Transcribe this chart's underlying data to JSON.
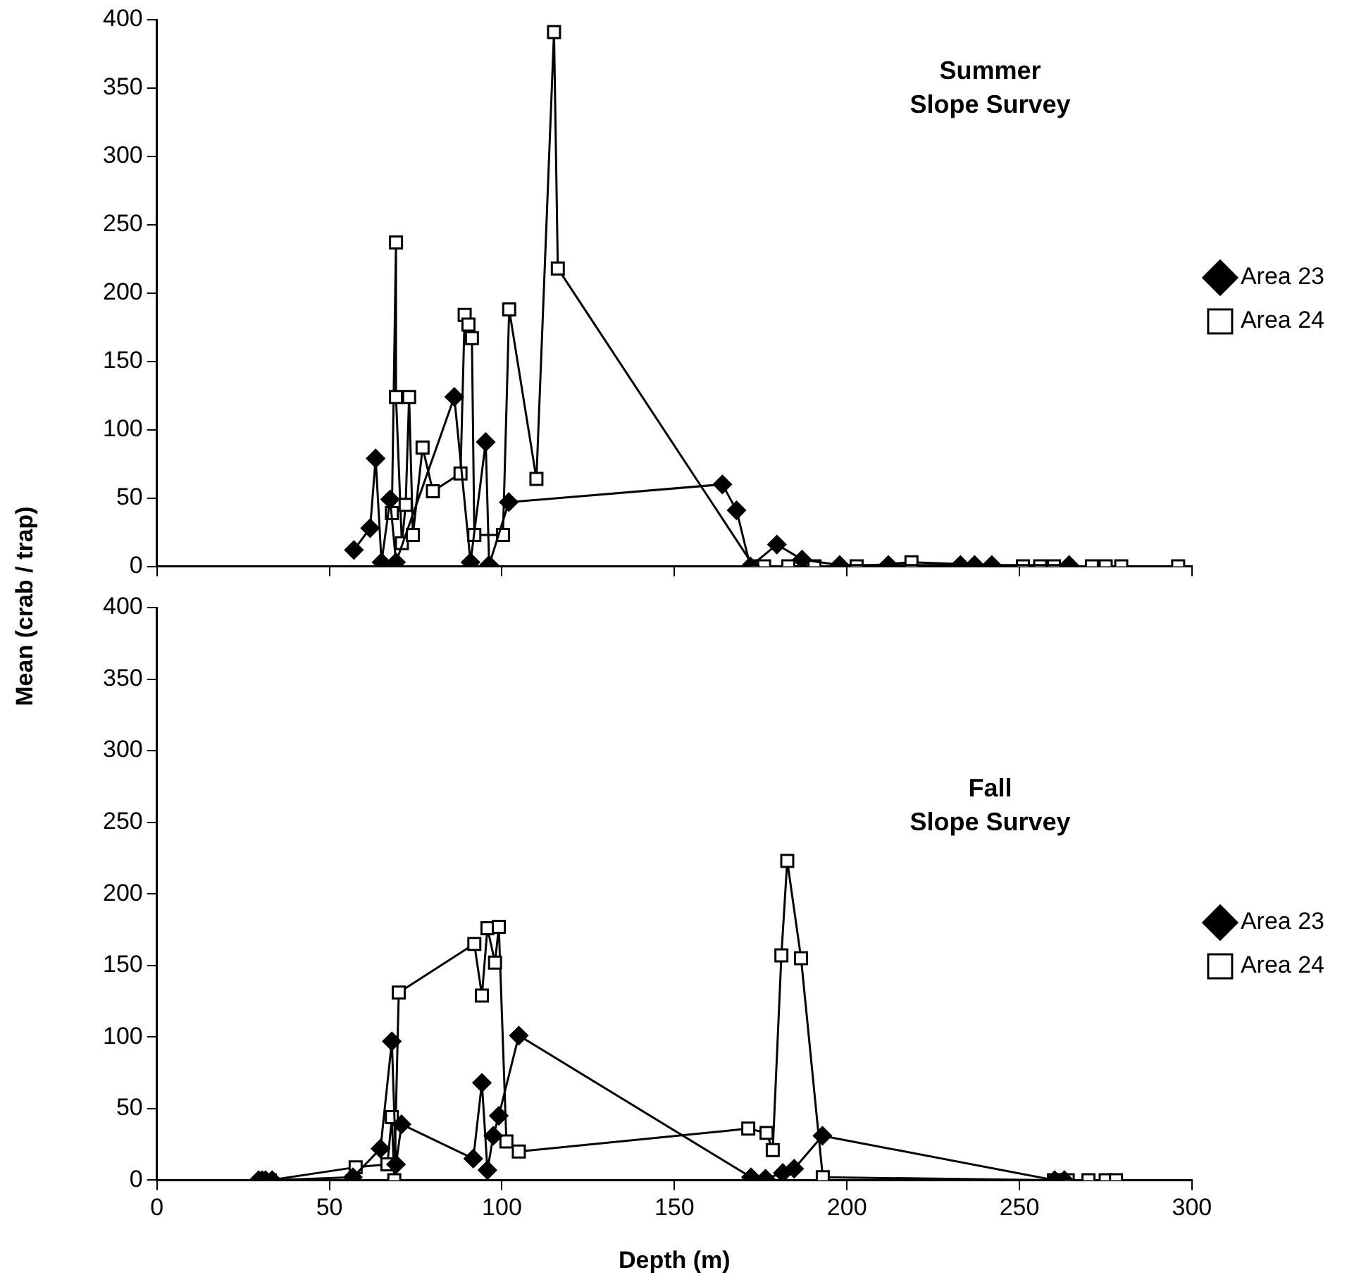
{
  "chart_data": [
    {
      "type": "line",
      "title": "Summer\nSlope Survey",
      "ylabel": "Mean (crab / trap)",
      "xlim": [
        0,
        300
      ],
      "xticks": [
        0,
        50,
        100,
        150,
        200,
        250,
        300
      ],
      "ylim": [
        0,
        400
      ],
      "yticks": [
        0,
        50,
        100,
        150,
        200,
        250,
        300,
        350,
        400
      ],
      "tick_labels": "y",
      "legend": "right",
      "grid": false,
      "series": [
        {
          "name": "Area 23",
          "color": "#000000",
          "marker": "diamond",
          "x": [
            57.1,
            61.8,
            63.4,
            65.1,
            67.6,
            69.3,
            86.2,
            90.9,
            95.3,
            96.3,
            102,
            163.9,
            168,
            172,
            179.7,
            187,
            197.9,
            212,
            232.9,
            237,
            242,
            264.4
          ],
          "values": [
            12,
            28,
            79,
            3,
            49,
            3,
            124,
            3,
            91,
            1,
            47,
            60,
            41,
            0,
            16,
            5,
            1,
            1,
            1,
            1,
            1,
            1
          ]
        },
        {
          "name": "Area 24",
          "color": "#000000",
          "marker": "square",
          "x": [
            68.1,
            69.3,
            69.3,
            71,
            72.1,
            73.1,
            74.2,
            77,
            80,
            88,
            89.2,
            90.3,
            91.3,
            92,
            100.3,
            102.1,
            110,
            115.1,
            116.2,
            173,
            176,
            183,
            190.6,
            202.8,
            218.7,
            251,
            256,
            260,
            271,
            275,
            279.5,
            296
          ],
          "values": [
            39,
            237,
            124,
            17,
            45,
            124,
            23,
            87,
            55,
            68,
            184,
            177,
            167,
            23,
            23,
            188,
            64,
            391,
            218,
            0,
            0,
            0,
            0,
            0,
            3,
            0,
            0,
            0,
            0,
            0,
            0,
            0
          ]
        }
      ]
    },
    {
      "type": "line",
      "title": "Fall\nSlope Survey",
      "xlabel": "Depth (m)",
      "xlim": [
        0,
        300
      ],
      "xticks": [
        0,
        50,
        100,
        150,
        200,
        250,
        300
      ],
      "ylim": [
        0,
        400
      ],
      "yticks": [
        0,
        50,
        100,
        150,
        200,
        250,
        300,
        350,
        400
      ],
      "legend": "right",
      "grid": false,
      "series": [
        {
          "name": "Area 23",
          "color": "#000000",
          "marker": "diamond",
          "x": [
            29.5,
            30.5,
            31.5,
            33.4,
            56.8,
            64.8,
            68.1,
            69.3,
            70.9,
            91.7,
            94.2,
            95.8,
            97.5,
            99.1,
            104.9,
            172.2,
            176.4,
            181.4,
            184.7,
            192.9,
            260.2,
            263
          ],
          "values": [
            0,
            0,
            0,
            0,
            2,
            22,
            97,
            11,
            39,
            15,
            68,
            7,
            31,
            45,
            101,
            2,
            1,
            5,
            8,
            31,
            0,
            0
          ]
        },
        {
          "name": "Area 24",
          "color": "#000000",
          "marker": "square",
          "x": [
            32.7,
            57.6,
            66.8,
            68.1,
            68.8,
            70.1,
            92,
            94.2,
            95.8,
            98,
            99.1,
            101.3,
            104.9,
            171.4,
            176.7,
            178.5,
            181,
            182.7,
            186.7,
            193,
            260,
            264,
            270,
            275,
            278
          ],
          "values": [
            0,
            9,
            11,
            44,
            0,
            131,
            165,
            129,
            176,
            152,
            177,
            27,
            20,
            36,
            33,
            21,
            157,
            223,
            155,
            2,
            0,
            0,
            0,
            0,
            0
          ]
        }
      ]
    }
  ]
}
